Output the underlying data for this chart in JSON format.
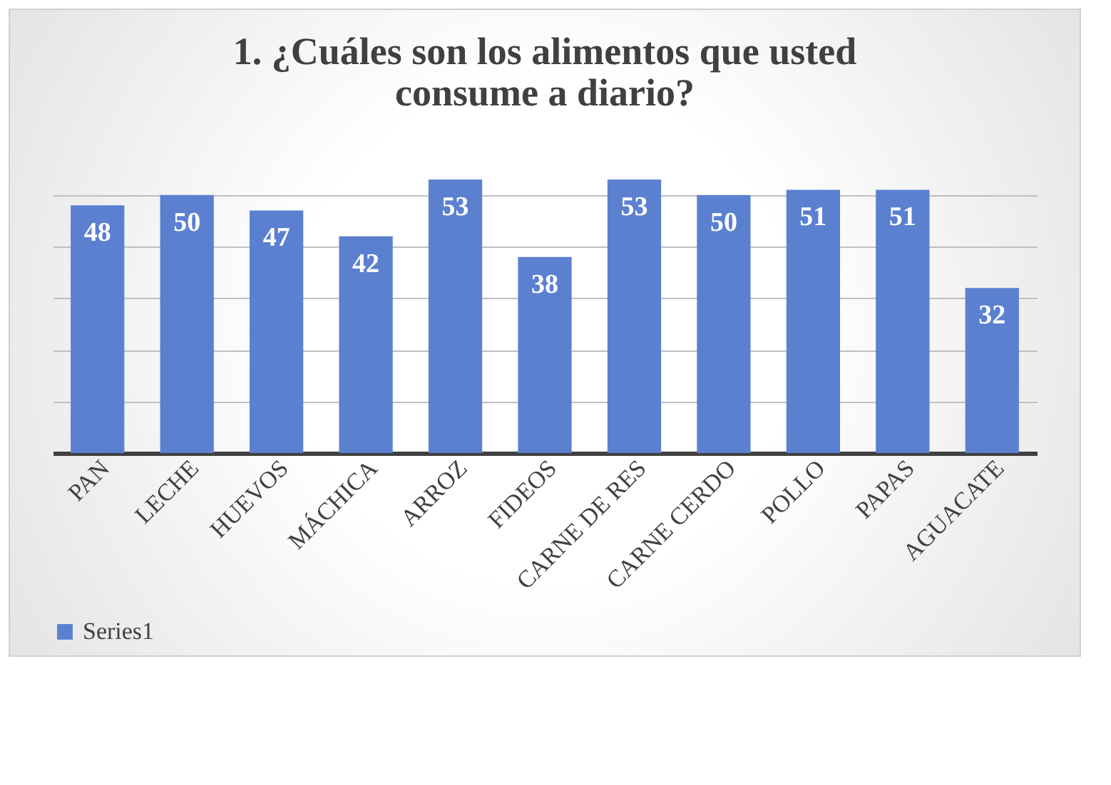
{
  "chart_data": {
    "type": "bar",
    "title": "1. ¿Cuáles son los alimentos que usted consume a diario?",
    "categories": [
      "PAN",
      "LECHE",
      "HUEVOS",
      "MÁCHICA",
      "ARROZ",
      "FIDEOS",
      "CARNE DE RES",
      "CARNE CERDO",
      "POLLO",
      "PAPAS",
      "AGUACATE"
    ],
    "series": [
      {
        "name": "Series1",
        "color": "#5b80d0",
        "values": [
          48,
          50,
          47,
          42,
          53,
          38,
          53,
          50,
          51,
          51,
          32
        ]
      }
    ],
    "yticks": [
      0,
      10,
      20,
      30,
      40,
      50
    ],
    "grid": "y",
    "tick_labels": "x",
    "data_labels": true,
    "legend": "bottom"
  }
}
